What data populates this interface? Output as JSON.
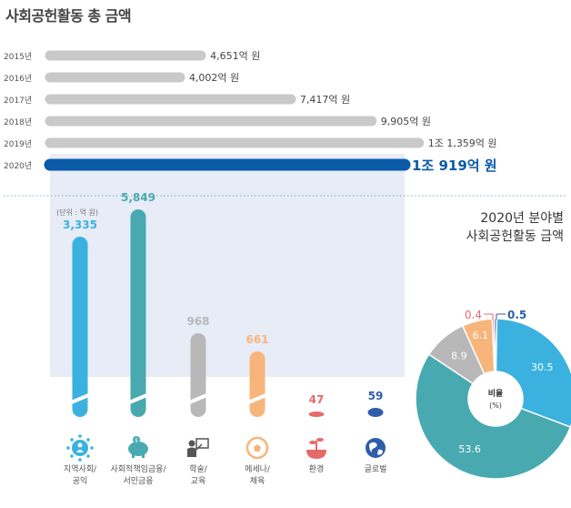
{
  "page_title": "사회공헌활동 총 금액",
  "unit_note": "(단위 : 억 원)",
  "pie_title_line1": "2020년 분야별",
  "pie_title_line2": "사회공헌활동 금액",
  "pie_center_label": "비율",
  "pie_center_unit": "(%)",
  "colors": {
    "annual_bar": "#c9c9c9",
    "annual_bar_highlight": "#0a5aa8",
    "highlight_panel": "#e7ecf7",
    "community": "#3bb1e0",
    "finance": "#48aab0",
    "academic": "#b8b8b8",
    "mecenat": "#f7b57b",
    "environment": "#e66a6a",
    "global": "#2f5da8"
  },
  "chart_data": [
    {
      "type": "bar",
      "orientation": "horizontal",
      "title": "사회공헌활동 총 금액",
      "categories": [
        "2015년",
        "2016년",
        "2017년",
        "2018년",
        "2019년",
        "2020년"
      ],
      "values": [
        4651,
        4002,
        7417,
        9905,
        11359,
        10919
      ],
      "value_labels": [
        "4,651억 원",
        "4,002억 원",
        "7,417억 원",
        "9,905억 원",
        "1조 1,359억 원",
        "1조 919억 원"
      ],
      "highlight": "2020년"
    },
    {
      "type": "bar",
      "orientation": "vertical",
      "unit": "(단위 : 억 원)",
      "broken_axis": true,
      "categories": [
        {
          "line1": "지역사회/",
          "line2": "공익",
          "icon": "community-icon",
          "color_key": "community"
        },
        {
          "line1": "사회적책임금융/",
          "line2": "서민금융",
          "icon": "piggy-bank-icon",
          "color_key": "finance"
        },
        {
          "line1": "학술/",
          "line2": "교육",
          "icon": "education-icon",
          "color_key": "academic"
        },
        {
          "line1": "메세나/",
          "line2": "체육",
          "icon": "soccer-ball-icon",
          "color_key": "mecenat"
        },
        {
          "line1": "환경",
          "line2": "",
          "icon": "plant-icon",
          "color_key": "environment"
        },
        {
          "line1": "글로벌",
          "line2": "",
          "icon": "globe-icon",
          "color_key": "global"
        }
      ],
      "values": [
        3335,
        5849,
        968,
        661,
        47,
        59
      ],
      "value_labels": [
        "3,335",
        "5,849",
        "968",
        "661",
        "47",
        "59"
      ]
    },
    {
      "type": "pie",
      "style": "donut",
      "title": "2020년 분야별 사회공헌활동 금액",
      "center_label": "비율 (%)",
      "slices": [
        {
          "category": "지역사회/공익",
          "value": 30.5,
          "label": "30.5",
          "color_key": "community"
        },
        {
          "category": "사회적책임금융/서민금융",
          "value": 53.6,
          "label": "53.6",
          "color_key": "finance"
        },
        {
          "category": "학술/교육",
          "value": 8.9,
          "label": "8.9",
          "color_key": "academic"
        },
        {
          "category": "메세나/체육",
          "value": 6.1,
          "label": "6.1",
          "color_key": "mecenat"
        },
        {
          "category": "환경",
          "value": 0.4,
          "label": "0.4",
          "color_key": "environment"
        },
        {
          "category": "글로벌",
          "value": 0.5,
          "label": "0.5",
          "color_key": "global"
        }
      ]
    }
  ]
}
